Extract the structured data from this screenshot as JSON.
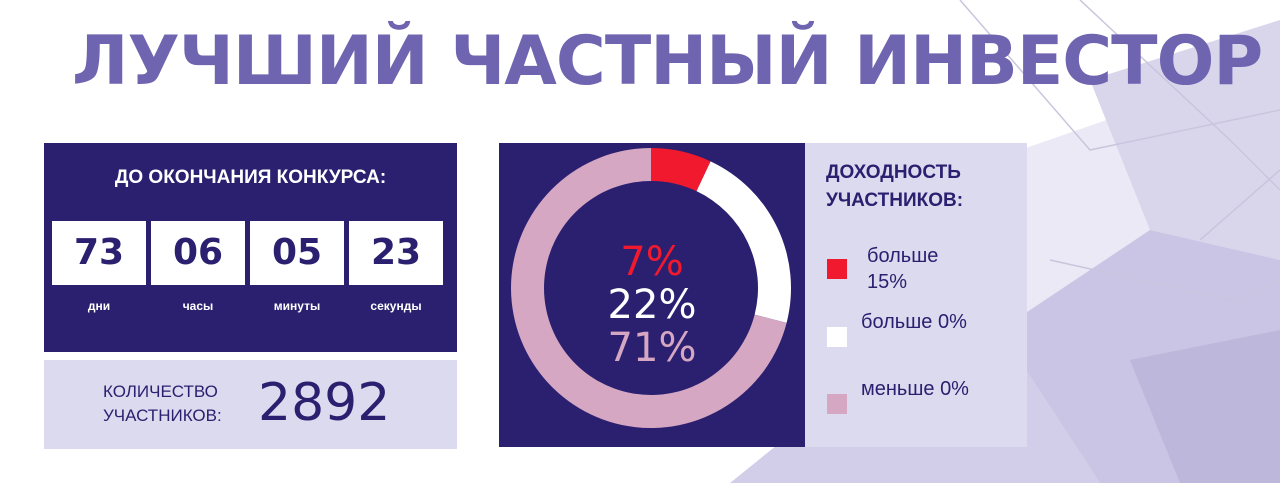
{
  "header": {
    "title": "ЛУЧШИЙ ЧАСТНЫЙ ИНВЕСТОР"
  },
  "countdown": {
    "title": "ДО ОКОНЧАНИЯ КОНКУРСА:",
    "cells": [
      {
        "value": "73",
        "unit": "дни"
      },
      {
        "value": "06",
        "unit": "часы"
      },
      {
        "value": "05",
        "unit": "минуты"
      },
      {
        "value": "23",
        "unit": "секунды"
      }
    ]
  },
  "participants": {
    "label": "КОЛИЧЕСТВО УЧАСТНИКОВ:",
    "value": "2892"
  },
  "legend": {
    "title": "ДОХОДНОСТЬ УЧАСТНИКОВ:",
    "items": [
      {
        "label": "больше 15%"
      },
      {
        "label": "больше 0%"
      },
      {
        "label": "меньше 0%"
      }
    ]
  },
  "colors": {
    "brand": "#6f64b0",
    "panel_dark": "#2b2070",
    "panel_light": "#dcdaee",
    "red": "#f0192d",
    "white": "#ffffff",
    "pink": "#d5a7c3"
  },
  "chart_data": {
    "type": "pie",
    "variant": "donut",
    "title": "ДОХОДНОСТЬ УЧАСТНИКОВ:",
    "categories": [
      "больше 15%",
      "больше 0%",
      "меньше 0%"
    ],
    "values": [
      7,
      22,
      71
    ],
    "labels": [
      "7%",
      "22%",
      "71%"
    ],
    "colors": [
      "#f0192d",
      "#ffffff",
      "#d5a7c3"
    ]
  }
}
